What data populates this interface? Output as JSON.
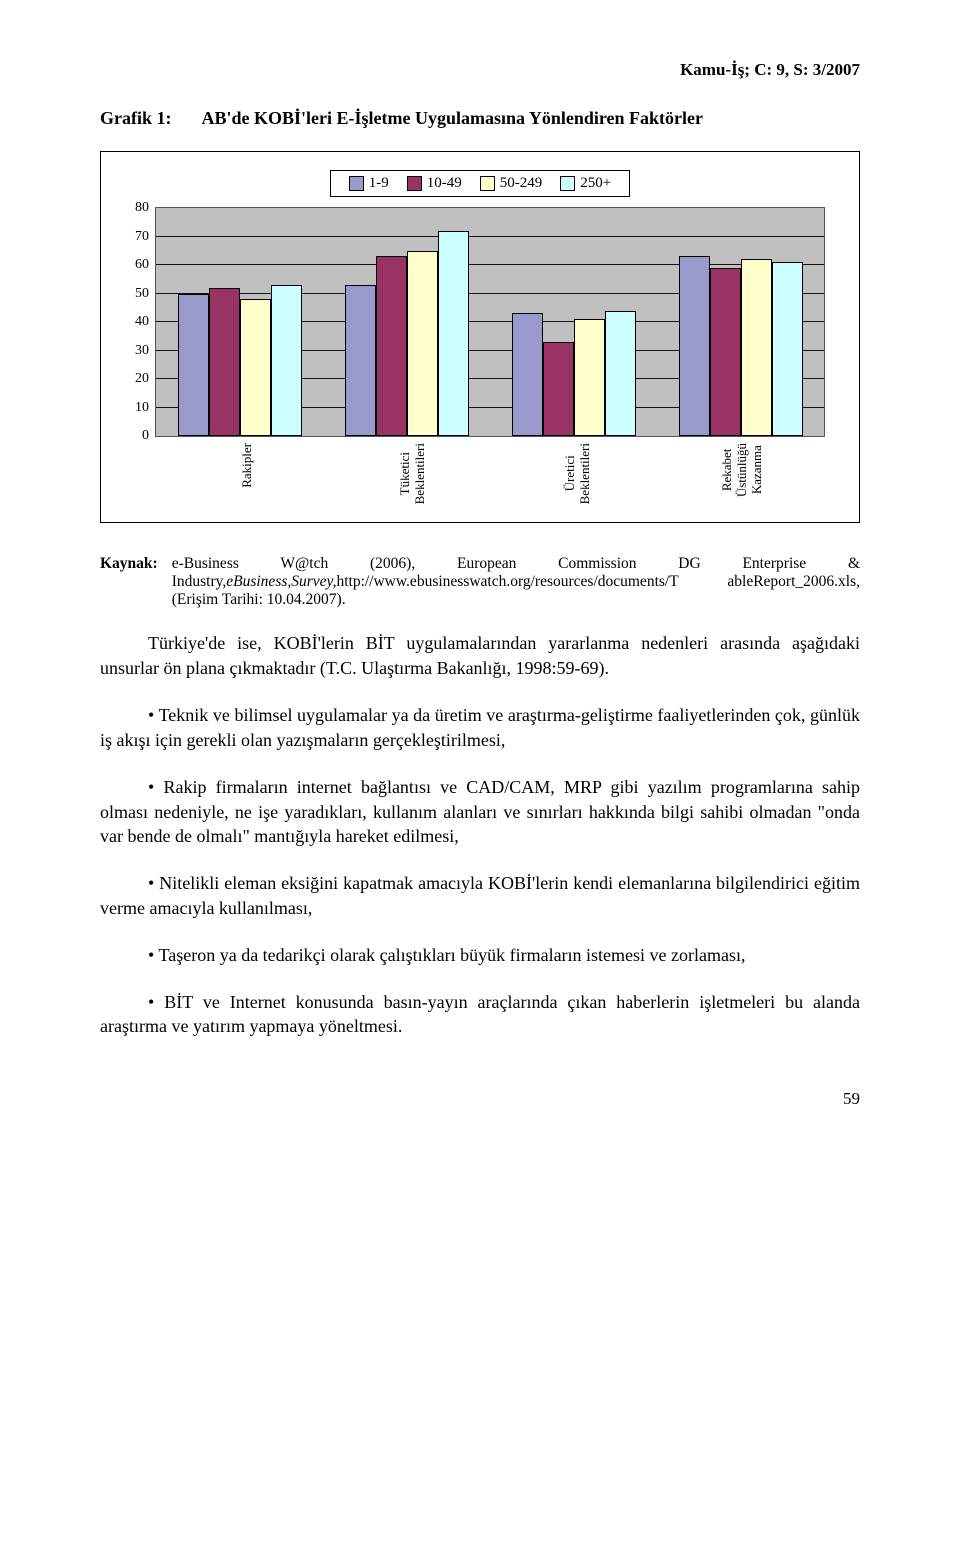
{
  "header": "Kamu-İş; C: 9, S: 3/2007",
  "figure": {
    "label": "Grafik 1:",
    "title": "AB'de KOBİ'leri E-İşletme Uygulamasına Yönlendiren Faktörler"
  },
  "chart": {
    "type": "grouped-bar",
    "background_color": "#c0c0c0",
    "grid_color": "#000000",
    "ylim": [
      0,
      80
    ],
    "ytick_step": 10,
    "yticks": [
      "80",
      "70",
      "60",
      "50",
      "40",
      "30",
      "20",
      "10",
      "0"
    ],
    "legend": [
      {
        "label": "1-9",
        "color": "#9999cc"
      },
      {
        "label": "10-49",
        "color": "#993366"
      },
      {
        "label": "50-249",
        "color": "#ffffcc"
      },
      {
        "label": "250+",
        "color": "#ccffff"
      }
    ],
    "categories": [
      {
        "label": "Rakipler",
        "values": [
          50,
          52,
          48,
          53
        ]
      },
      {
        "label": "Tüketici\nBeklentileri",
        "values": [
          53,
          63,
          65,
          72
        ]
      },
      {
        "label": "Üretici\nBeklentileri",
        "values": [
          43,
          33,
          41,
          44
        ]
      },
      {
        "label": "Rekabet\nÜstünlüğü\nKazanma",
        "values": [
          63,
          59,
          62,
          61
        ]
      }
    ]
  },
  "source": {
    "label": "Kaynak:",
    "text_plain": "e-Business W@tch (2006), European Commission DG Enterprise & Industry,",
    "text_italic": "eBusiness,Survey,",
    "text_rest": "http://www.ebusinesswatch.org/resources/documents/T ableReport_2006.xls,(Erişim Tarihi: 10.04.2007)."
  },
  "paragraph_intro": "Türkiye'de ise, KOBİ'lerin BİT uygulamalarından yararlanma nedenleri arasında aşağıdaki unsurlar ön plana çıkmaktadır (T.C. Ulaştırma Bakanlığı, 1998:59-69).",
  "bullets": [
    "Teknik ve bilimsel uygulamalar ya da üretim ve araştırma-geliştirme faaliyetlerinden çok, günlük iş akışı için gerekli olan yazışmaların gerçekleştirilmesi,",
    "Rakip firmaların internet bağlantısı ve CAD/CAM, MRP gibi yazılım programlarına sahip olması nedeniyle, ne işe yaradıkları, kullanım alanları ve sınırları hakkında bilgi sahibi olmadan \"onda var bende de olmalı\" mantığıyla hareket edilmesi,",
    "Nitelikli eleman eksiğini kapatmak amacıyla KOBİ'lerin kendi elemanlarına bilgilendirici eğitim verme amacıyla kullanılması,",
    "Taşeron ya da tedarikçi olarak çalıştıkları büyük firmaların istemesi ve zorlaması,",
    "BİT ve Internet konusunda basın-yayın araçlarında çıkan haberlerin işletmeleri bu alanda araştırma ve yatırım yapmaya yöneltmesi."
  ],
  "page_number": "59"
}
